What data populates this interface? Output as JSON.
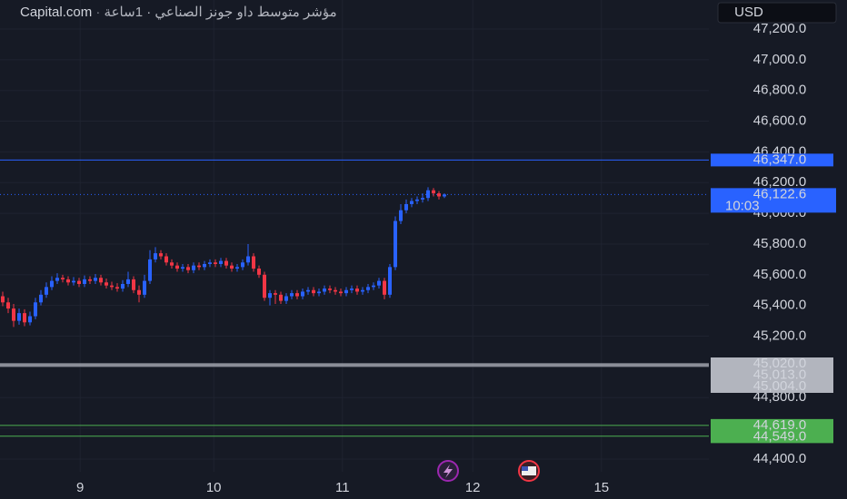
{
  "chart_data": {
    "type": "candlestick",
    "source": "Capital.com",
    "title": "مؤشر متوسط داو جونز الصناعي · 1ساعة",
    "currency": "USD",
    "up_color": "#2962ff",
    "down_color": "#f23645",
    "ylim": [
      44317,
      47389
    ],
    "yticks": [
      {
        "value": 44400,
        "label": "44,400.0"
      },
      {
        "value": 44600,
        "label": "44,600.0"
      },
      {
        "value": 44800,
        "label": "44,800.0"
      },
      {
        "value": 45000,
        "label": "45,000.0"
      },
      {
        "value": 45200,
        "label": "45,200.0"
      },
      {
        "value": 45400,
        "label": "45,400.0"
      },
      {
        "value": 45600,
        "label": "45,600.0"
      },
      {
        "value": 45800,
        "label": "45,800.0"
      },
      {
        "value": 46000,
        "label": "46,000.0"
      },
      {
        "value": 46200,
        "label": "46,200.0"
      },
      {
        "value": 46400,
        "label": "46,400.0"
      },
      {
        "value": 46600,
        "label": "46,600.0"
      },
      {
        "value": 46800,
        "label": "46,800.0"
      },
      {
        "value": 47000,
        "label": "47,000.0"
      },
      {
        "value": 47200,
        "label": "47,200.0"
      }
    ],
    "xlim": [
      0,
      130
    ],
    "xticks": [
      {
        "value": 14.7,
        "label": "9"
      },
      {
        "value": 39.2,
        "label": "10"
      },
      {
        "value": 62.8,
        "label": "11"
      },
      {
        "value": 86.7,
        "label": "12"
      },
      {
        "value": 110.3,
        "label": "15"
      }
    ],
    "grid": true,
    "open": [
      45460,
      45420,
      45380,
      45300,
      45350,
      45290,
      45330,
      45420,
      45470,
      45520,
      45560,
      45580,
      45570,
      45550,
      45560,
      45540,
      45570,
      45560,
      45580,
      45550,
      45530,
      45520,
      45510,
      45540,
      45570,
      45500,
      45470,
      45560,
      45700,
      45740,
      45720,
      45680,
      45660,
      45640,
      45650,
      45630,
      45660,
      45650,
      45670,
      45680,
      45670,
      45690,
      45660,
      45640,
      45650,
      45680,
      45720,
      45640,
      45600,
      45450,
      45480,
      45470,
      45430,
      45460,
      45480,
      45460,
      45490,
      45500,
      45480,
      45490,
      45510,
      45500,
      45490,
      45480,
      45500,
      45510,
      45490,
      45500,
      45520,
      45530,
      45560,
      45470,
      45650,
      45950,
      46020,
      46060,
      46080,
      46090,
      46100,
      46150,
      46130,
      46110
    ],
    "high": [
      45490,
      45450,
      45410,
      45380,
      45375,
      45360,
      45450,
      45500,
      45550,
      45590,
      45610,
      45600,
      45590,
      45585,
      45580,
      45595,
      45590,
      45605,
      45600,
      45575,
      45555,
      45545,
      45565,
      45620,
      45590,
      45530,
      45600,
      45760,
      45780,
      45760,
      45740,
      45700,
      45680,
      45670,
      45670,
      45680,
      45680,
      45690,
      45700,
      45700,
      45710,
      45710,
      45680,
      45670,
      45700,
      45800,
      45740,
      45660,
      45620,
      45500,
      45500,
      45490,
      45480,
      45500,
      45500,
      45510,
      45520,
      45520,
      45510,
      45530,
      45530,
      45520,
      45510,
      45520,
      45530,
      45530,
      45520,
      45540,
      45550,
      45580,
      45580,
      45670,
      45980,
      46060,
      46090,
      46100,
      46110,
      46130,
      46170,
      46165,
      46145,
      46130
    ],
    "low": [
      45395,
      45350,
      45260,
      45275,
      45265,
      45270,
      45310,
      45400,
      45450,
      45500,
      45540,
      45550,
      45530,
      45530,
      45520,
      45520,
      45540,
      45540,
      45530,
      45510,
      45500,
      45490,
      45490,
      45520,
      45480,
      45420,
      45450,
      45540,
      45680,
      45700,
      45660,
      45640,
      45620,
      45620,
      45610,
      45610,
      45630,
      45630,
      45650,
      45650,
      45650,
      45640,
      45620,
      45620,
      45630,
      45660,
      45620,
      45580,
      45430,
      45400,
      45410,
      45410,
      45410,
      45440,
      45440,
      45440,
      45470,
      45460,
      45460,
      45470,
      45480,
      45470,
      45460,
      45460,
      45480,
      45470,
      45470,
      45480,
      45500,
      45510,
      45440,
      45450,
      45630,
      45930,
      46000,
      46040,
      46060,
      46070,
      46080,
      46110,
      46090,
      46100
    ],
    "close": [
      45420,
      45380,
      45300,
      45350,
      45290,
      45330,
      45420,
      45470,
      45520,
      45560,
      45580,
      45570,
      45550,
      45560,
      45540,
      45570,
      45560,
      45580,
      45550,
      45530,
      45520,
      45510,
      45540,
      45570,
      45500,
      45470,
      45560,
      45700,
      45740,
      45720,
      45680,
      45660,
      45640,
      45650,
      45630,
      45660,
      45650,
      45670,
      45680,
      45670,
      45690,
      45660,
      45640,
      45650,
      45680,
      45720,
      45640,
      45600,
      45450,
      45480,
      45470,
      45430,
      45460,
      45480,
      45460,
      45490,
      45500,
      45480,
      45490,
      45510,
      45500,
      45490,
      45480,
      45500,
      45510,
      45490,
      45500,
      45520,
      45530,
      45560,
      45470,
      45650,
      45950,
      46020,
      46060,
      46080,
      46090,
      46100,
      46150,
      46130,
      46110,
      46122.6
    ],
    "price_lines": [
      {
        "value": 46347,
        "label": "46,347.0",
        "color": "#2962ff"
      },
      {
        "value": 45020,
        "label": "45,020.0",
        "color": "#b2b5be"
      },
      {
        "value": 45013,
        "label": "45,013.0",
        "color": "#b2b5be"
      },
      {
        "value": 45004,
        "label": "45,004.0",
        "color": "#b2b5be"
      },
      {
        "value": 44619,
        "label": "44,619.0",
        "color": "#4caf50"
      },
      {
        "value": 44549,
        "label": "44,549.0",
        "color": "#4caf50"
      }
    ],
    "last_price": {
      "value": 46122.6,
      "label": "46,122.6"
    },
    "countdown": "10:03"
  }
}
